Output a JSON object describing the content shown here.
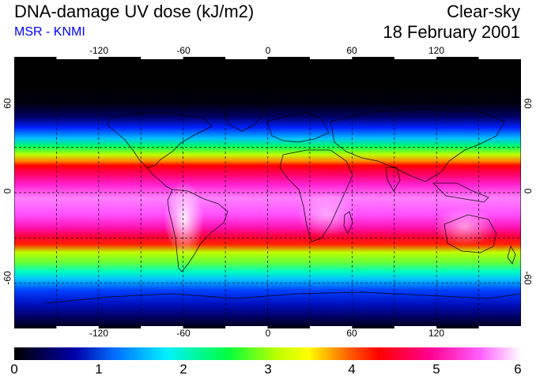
{
  "header": {
    "title": "DNA-damage UV dose (kJ/m2)",
    "source": "MSR - KNMI",
    "condition": "Clear-sky",
    "date": "18 February 2001"
  },
  "map": {
    "projection": "equirectangular",
    "lon_range": [
      -180,
      180
    ],
    "lat_range": [
      -90,
      90
    ],
    "lon_ticks": [
      "-120",
      "-60",
      "0",
      "60",
      "120"
    ],
    "lat_ticks": [
      "60",
      "0",
      "-60"
    ],
    "gridlines": "dashed every 30 degrees"
  },
  "colorbar": {
    "labels": [
      "0",
      "1",
      "2",
      "3",
      "4",
      "5",
      "6"
    ],
    "range": [
      0,
      6
    ],
    "colors": [
      "#000000",
      "#0000aa",
      "#0070ff",
      "#00f0ff",
      "#00ff40",
      "#c0ff00",
      "#ffff00",
      "#ff6000",
      "#ff0000",
      "#ff0090",
      "#ff60ff",
      "#ffffff"
    ]
  }
}
